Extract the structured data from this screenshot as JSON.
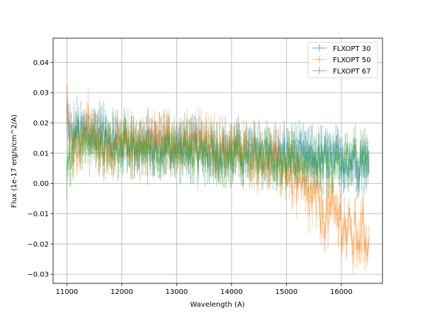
{
  "chart_data": {
    "type": "line",
    "title": "",
    "xlabel": "Wavelength (A)",
    "ylabel": "Flux (1e-17 erg/s/cm^2/A)",
    "xlim": [
      10750,
      16750
    ],
    "ylim": [
      -0.033,
      0.048
    ],
    "xticks": [
      11000,
      12000,
      13000,
      14000,
      15000,
      16000
    ],
    "yticks": [
      -0.03,
      -0.02,
      -0.01,
      0.0,
      0.01,
      0.02,
      0.03,
      0.04
    ],
    "xtick_labels": [
      "11000",
      "12000",
      "13000",
      "14000",
      "15000",
      "16000"
    ],
    "ytick_labels": [
      "−0.03",
      "−0.02",
      "−0.01",
      "0.00",
      "0.01",
      "0.02",
      "0.03",
      "0.04"
    ],
    "grid": true,
    "legend_position": "top-right",
    "error_bars": true,
    "series": [
      {
        "name": "FLXOPT 30",
        "color": "#1f77b4",
        "x": [
          11000,
          11100,
          11200,
          11300,
          11400,
          11500,
          11600,
          11700,
          11800,
          11900,
          12000,
          12100,
          12200,
          12300,
          12400,
          12500,
          12600,
          12700,
          12800,
          12900,
          13000,
          13100,
          13200,
          13300,
          13400,
          13500,
          13600,
          13700,
          13800,
          13900,
          14000,
          14100,
          14200,
          14300,
          14400,
          14500,
          14600,
          14700,
          14800,
          14900,
          15000,
          15100,
          15200,
          15300,
          15400,
          15500,
          15600,
          15700,
          15800,
          15900,
          16000,
          16100,
          16200,
          16300,
          16400,
          16500
        ],
        "y": [
          0.02,
          0.015,
          0.018,
          0.016,
          0.017,
          0.016,
          0.017,
          0.016,
          0.015,
          0.014,
          0.013,
          0.014,
          0.013,
          0.013,
          0.012,
          0.013,
          0.012,
          0.013,
          0.012,
          0.012,
          0.012,
          0.012,
          0.012,
          0.011,
          0.012,
          0.011,
          0.011,
          0.011,
          0.01,
          0.011,
          0.01,
          0.011,
          0.01,
          0.01,
          0.01,
          0.01,
          0.01,
          0.009,
          0.01,
          0.009,
          0.009,
          0.009,
          0.008,
          0.009,
          0.008,
          0.008,
          0.008,
          0.008,
          0.007,
          0.008,
          0.007,
          0.008,
          0.007,
          0.007,
          0.008,
          0.007
        ]
      },
      {
        "name": "FLXOPT 50",
        "color": "#ff7f0e",
        "x": [
          11000,
          11100,
          11200,
          11300,
          11400,
          11500,
          11600,
          11700,
          11800,
          11900,
          12000,
          12100,
          12200,
          12300,
          12400,
          12500,
          12600,
          12700,
          12800,
          12900,
          13000,
          13100,
          13200,
          13300,
          13400,
          13500,
          13600,
          13700,
          13800,
          13900,
          14000,
          14100,
          14200,
          14300,
          14400,
          14500,
          14600,
          14700,
          14800,
          14900,
          15000,
          15100,
          15200,
          15300,
          15400,
          15500,
          15600,
          15700,
          15800,
          15900,
          16000,
          16100,
          16200,
          16300,
          16400,
          16500
        ],
        "y": [
          0.025,
          0.012,
          0.014,
          0.013,
          0.022,
          0.013,
          0.012,
          0.012,
          0.013,
          0.012,
          0.012,
          0.013,
          0.013,
          0.014,
          0.013,
          0.014,
          0.015,
          0.014,
          0.015,
          0.014,
          0.014,
          0.013,
          0.012,
          0.013,
          0.014,
          0.012,
          0.013,
          0.012,
          0.011,
          0.012,
          0.011,
          0.011,
          0.01,
          0.01,
          0.01,
          0.008,
          0.009,
          0.007,
          0.008,
          0.005,
          0.005,
          0.004,
          0.0,
          -0.003,
          -0.004,
          -0.005,
          -0.008,
          -0.01,
          -0.009,
          -0.01,
          -0.012,
          -0.016,
          -0.018,
          -0.017,
          -0.016,
          -0.018
        ]
      },
      {
        "name": "FLXOPT 67",
        "color": "#2ca02c",
        "x": [
          11000,
          11100,
          11200,
          11300,
          11400,
          11500,
          11600,
          11700,
          11800,
          11900,
          12000,
          12100,
          12200,
          12300,
          12400,
          12500,
          12600,
          12700,
          12800,
          12900,
          13000,
          13100,
          13200,
          13300,
          13400,
          13500,
          13600,
          13700,
          13800,
          13900,
          14000,
          14100,
          14200,
          14300,
          14400,
          14500,
          14600,
          14700,
          14800,
          14900,
          15000,
          15100,
          15200,
          15300,
          15400,
          15500,
          15600,
          15700,
          15800,
          15900,
          16000,
          16100,
          16200,
          16300,
          16400,
          16500
        ],
        "y": [
          0.005,
          0.012,
          0.015,
          0.014,
          0.013,
          0.014,
          0.013,
          0.014,
          0.012,
          0.013,
          0.012,
          0.012,
          0.011,
          0.012,
          0.011,
          0.012,
          0.011,
          0.012,
          0.011,
          0.011,
          0.011,
          0.011,
          0.01,
          0.011,
          0.01,
          0.011,
          0.01,
          0.01,
          0.01,
          0.01,
          0.009,
          0.01,
          0.009,
          0.01,
          0.009,
          0.009,
          0.009,
          0.009,
          0.008,
          0.009,
          0.008,
          0.009,
          0.008,
          0.008,
          0.008,
          0.008,
          0.007,
          0.008,
          0.007,
          0.008,
          0.007,
          0.007,
          0.008,
          0.007,
          0.007,
          0.007
        ]
      }
    ]
  }
}
